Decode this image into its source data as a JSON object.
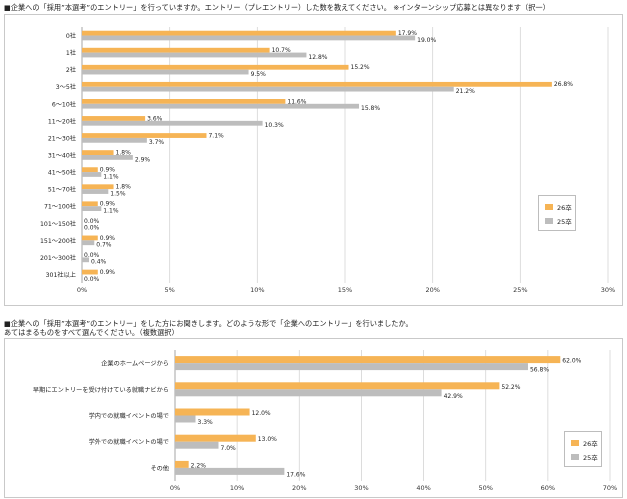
{
  "question1": "■企業への「採用”本選考”のエントリー」を行っていますか。エントリー（プレエントリー）した数を教えてください。 ※インターンシップ応募とは異なります（択一）",
  "question2_line1": "■企業への「採用”本選考”のエントリー」をした方にお聞きします。どのような形で「企業へのエントリー」を行いましたか。",
  "question2_line2": "あてはまるものをすべて選んでください。（複数選択）",
  "colors": {
    "s26": "#f6b455",
    "s25": "#bdbdbd",
    "grid": "#d4d4d4"
  },
  "chart_data": [
    {
      "type": "bar",
      "orientation": "horizontal",
      "categories": [
        "0社",
        "1社",
        "2社",
        "3～5社",
        "6～10社",
        "11～20社",
        "21～30社",
        "31～40社",
        "41～50社",
        "51～70社",
        "71～100社",
        "101～150社",
        "151～200社",
        "201～300社",
        "301社以上"
      ],
      "series": [
        {
          "name": "26卒",
          "values": [
            17.9,
            10.7,
            15.2,
            26.8,
            11.6,
            3.6,
            7.1,
            1.8,
            0.9,
            1.8,
            0.9,
            0.0,
            0.9,
            0.0,
            0.9
          ]
        },
        {
          "name": "25卒",
          "values": [
            19.0,
            12.8,
            9.5,
            21.2,
            15.8,
            10.3,
            3.7,
            2.9,
            1.1,
            1.5,
            1.1,
            0.0,
            0.7,
            0.4,
            0.0
          ]
        }
      ],
      "labels_26": [
        "17.9%",
        "10.7%",
        "15.2%",
        "26.8%",
        "11.6%",
        "3.6%",
        "7.1%",
        "1.8%",
        "0.9%",
        "1.8%",
        "0.9%",
        "0.0%",
        "0.9%",
        "0.0%",
        "0.9%"
      ],
      "labels_25": [
        "19.0%",
        "12.8%",
        "9.5%",
        "21.2%",
        "15.8%",
        "10.3%",
        "3.7%",
        "2.9%",
        "1.1%",
        "1.5%",
        "1.1%",
        "0.0%",
        "0.7%",
        "0.4%",
        "0.0%"
      ],
      "xlim": [
        0,
        30
      ],
      "xticks": [
        "0%",
        "5%",
        "10%",
        "15%",
        "20%",
        "25%",
        "30%"
      ],
      "grid": true,
      "legend": "right"
    },
    {
      "type": "bar",
      "orientation": "horizontal",
      "categories": [
        "企業のホームページから",
        "早期にエントリーを受け付けている就職ナビから",
        "学内での就職イベントの場で",
        "学外での就職イベントの場で",
        "その他"
      ],
      "series": [
        {
          "name": "26卒",
          "values": [
            62.0,
            52.2,
            12.0,
            13.0,
            2.2
          ]
        },
        {
          "name": "25卒",
          "values": [
            56.8,
            42.9,
            3.3,
            7.0,
            17.6
          ]
        }
      ],
      "labels_26": [
        "62.0%",
        "52.2%",
        "12.0%",
        "13.0%",
        "2.2%"
      ],
      "labels_25": [
        "56.8%",
        "42.9%",
        "3.3%",
        "7.0%",
        "17.6%"
      ],
      "xlim": [
        0,
        70
      ],
      "xticks": [
        "0%",
        "10%",
        "20%",
        "30%",
        "40%",
        "50%",
        "60%",
        "70%"
      ],
      "grid": true,
      "legend": "right"
    }
  ]
}
